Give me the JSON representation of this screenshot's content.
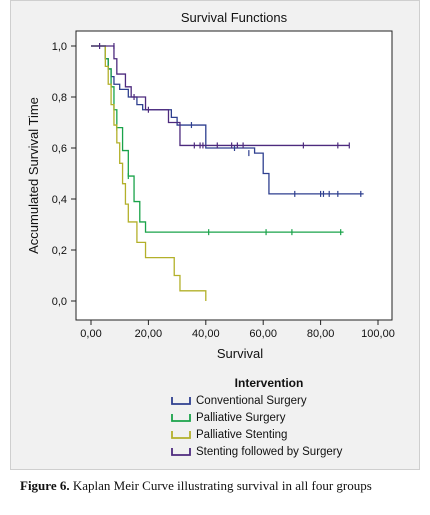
{
  "caption": {
    "label": "Figure 6.",
    "text": " Kaplan Meir Curve illustrating survival in all four groups"
  },
  "chart_data": {
    "type": "line",
    "step": true,
    "title": "Survival Functions",
    "xlabel": "Survival",
    "ylabel": "Accumulated Survival Time",
    "xlim": [
      0,
      100
    ],
    "ylim": [
      0,
      1.0
    ],
    "xticks": [
      0,
      20,
      40,
      60,
      80,
      100
    ],
    "xtick_labels": [
      "0,00",
      "20,00",
      "40,00",
      "60,00",
      "80,00",
      "100,00"
    ],
    "yticks": [
      0,
      0.2,
      0.4,
      0.6,
      0.8,
      1.0
    ],
    "ytick_labels": [
      "0,0",
      "0,2",
      "0,4",
      "0,6",
      "0,8",
      "1,0"
    ],
    "grid": false,
    "legend_title": "Intervention",
    "legend_position": "bottom",
    "series": [
      {
        "name": "Conventional Surgery",
        "color": "#2e3f8f",
        "x": [
          0,
          4,
          5,
          6,
          7,
          8,
          10,
          13,
          16,
          18,
          28,
          30,
          35,
          40,
          50,
          57,
          60,
          62,
          95
        ],
        "y": [
          1.0,
          1.0,
          0.95,
          0.91,
          0.88,
          0.85,
          0.83,
          0.8,
          0.77,
          0.75,
          0.72,
          0.69,
          0.69,
          0.6,
          0.6,
          0.58,
          0.5,
          0.42,
          0.42
        ],
        "censor_x": [
          35,
          50,
          55,
          71,
          80,
          81,
          83,
          86,
          94
        ],
        "censor_y": [
          0.69,
          0.6,
          0.58,
          0.42,
          0.42,
          0.42,
          0.42,
          0.42,
          0.42
        ]
      },
      {
        "name": "Palliative Surgery",
        "color": "#1aa34a",
        "x": [
          0,
          3,
          5,
          6,
          7,
          8,
          9,
          11,
          13,
          15,
          17,
          19,
          88
        ],
        "y": [
          1.0,
          1.0,
          0.95,
          0.91,
          0.84,
          0.75,
          0.68,
          0.59,
          0.49,
          0.39,
          0.31,
          0.27,
          0.27
        ],
        "censor_x": [
          9,
          13,
          41,
          61,
          70,
          87
        ],
        "censor_y": [
          0.68,
          0.49,
          0.27,
          0.27,
          0.27,
          0.27
        ]
      },
      {
        "name": "Palliative Stenting",
        "color": "#b3b02a",
        "x": [
          0,
          4,
          5,
          6,
          7,
          8,
          9,
          10,
          11,
          12,
          13,
          16,
          19,
          29,
          31,
          40
        ],
        "y": [
          1.0,
          1.0,
          0.92,
          0.85,
          0.77,
          0.69,
          0.62,
          0.54,
          0.46,
          0.38,
          0.31,
          0.23,
          0.17,
          0.1,
          0.04,
          0.0
        ],
        "censor_x": [],
        "censor_y": []
      },
      {
        "name": "Stenting followed by Surgery",
        "color": "#4d2a7e",
        "x": [
          0,
          7,
          8,
          9,
          12,
          14,
          19,
          27,
          31,
          90
        ],
        "y": [
          1.0,
          1.0,
          0.95,
          0.89,
          0.84,
          0.8,
          0.75,
          0.7,
          0.61,
          0.61
        ],
        "censor_x": [
          3,
          8,
          15,
          20,
          36,
          38,
          39,
          44,
          49,
          51,
          53,
          74,
          86,
          90
        ],
        "censor_y": [
          1.0,
          1.0,
          0.8,
          0.75,
          0.61,
          0.61,
          0.61,
          0.61,
          0.61,
          0.61,
          0.61,
          0.61,
          0.61,
          0.61
        ]
      }
    ]
  }
}
